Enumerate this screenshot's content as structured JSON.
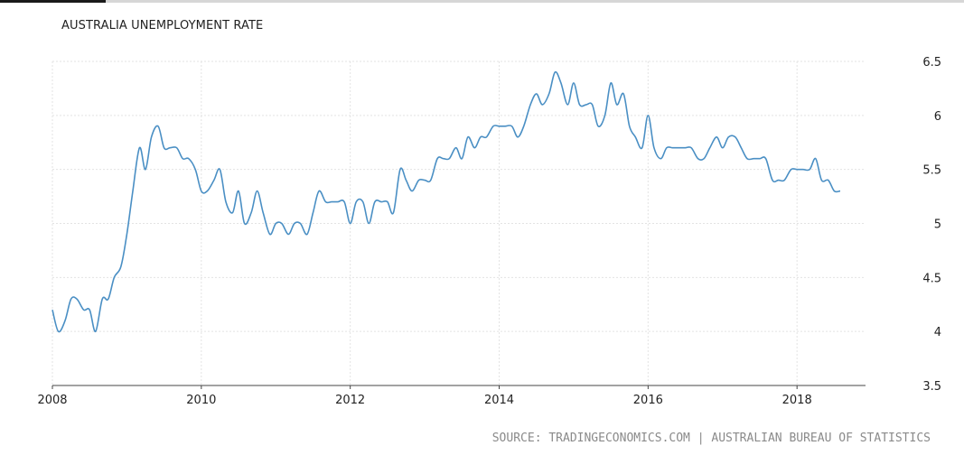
{
  "chart_data": {
    "type": "line",
    "title": "AUSTRALIA UNEMPLOYMENT RATE",
    "xlabel": "",
    "ylabel": "",
    "x_ticks": [
      "2008",
      "2010",
      "2012",
      "2014",
      "2016",
      "2018"
    ],
    "y_ticks": [
      "3.5",
      "4",
      "4.5",
      "5",
      "5.5",
      "6",
      "6.5"
    ],
    "xlim": [
      2008.0,
      2018.92
    ],
    "ylim": [
      3.5,
      6.5
    ],
    "grid": true,
    "line_color": "#4a8fc4",
    "series": [
      {
        "x": [
          2008.0,
          2008.08,
          2008.17,
          2008.25,
          2008.33,
          2008.42,
          2008.5,
          2008.58,
          2008.67,
          2008.75,
          2008.83,
          2008.92,
          2009.0,
          2009.08,
          2009.17,
          2009.25,
          2009.33,
          2009.42,
          2009.5,
          2009.58,
          2009.67,
          2009.75,
          2009.83,
          2009.92,
          2010.0,
          2010.08,
          2010.17,
          2010.25,
          2010.33,
          2010.42,
          2010.5,
          2010.58,
          2010.67,
          2010.75,
          2010.83,
          2010.92,
          2011.0,
          2011.08,
          2011.17,
          2011.25,
          2011.33,
          2011.42,
          2011.5,
          2011.58,
          2011.67,
          2011.75,
          2011.83,
          2011.92,
          2012.0,
          2012.08,
          2012.17,
          2012.25,
          2012.33,
          2012.42,
          2012.5,
          2012.58,
          2012.67,
          2012.75,
          2012.83,
          2012.92,
          2013.0,
          2013.08,
          2013.17,
          2013.25,
          2013.33,
          2013.42,
          2013.5,
          2013.58,
          2013.67,
          2013.75,
          2013.83,
          2013.92,
          2014.0,
          2014.08,
          2014.17,
          2014.25,
          2014.33,
          2014.42,
          2014.5,
          2014.58,
          2014.67,
          2014.75,
          2014.83,
          2014.92,
          2015.0,
          2015.08,
          2015.17,
          2015.25,
          2015.33,
          2015.42,
          2015.5,
          2015.58,
          2015.67,
          2015.75,
          2015.83,
          2015.92,
          2016.0,
          2016.08,
          2016.17,
          2016.25,
          2016.33,
          2016.42,
          2016.5,
          2016.58,
          2016.67,
          2016.75,
          2016.83,
          2016.92,
          2017.0,
          2017.08,
          2017.17,
          2017.25,
          2017.33,
          2017.42,
          2017.5,
          2017.58,
          2017.67,
          2017.75,
          2017.83,
          2017.92,
          2018.0,
          2018.08,
          2018.17,
          2018.25,
          2018.33,
          2018.42,
          2018.5,
          2018.58
        ],
        "y": [
          4.2,
          4.0,
          4.1,
          4.3,
          4.3,
          4.2,
          4.2,
          4.0,
          4.3,
          4.3,
          4.5,
          4.6,
          4.9,
          5.3,
          5.7,
          5.5,
          5.8,
          5.9,
          5.7,
          5.7,
          5.7,
          5.6,
          5.6,
          5.5,
          5.3,
          5.3,
          5.4,
          5.5,
          5.2,
          5.1,
          5.3,
          5.0,
          5.1,
          5.3,
          5.1,
          4.9,
          5.0,
          5.0,
          4.9,
          5.0,
          5.0,
          4.9,
          5.1,
          5.3,
          5.2,
          5.2,
          5.2,
          5.2,
          5.0,
          5.2,
          5.2,
          5.0,
          5.2,
          5.2,
          5.2,
          5.1,
          5.5,
          5.4,
          5.3,
          5.4,
          5.4,
          5.4,
          5.6,
          5.6,
          5.6,
          5.7,
          5.6,
          5.8,
          5.7,
          5.8,
          5.8,
          5.9,
          5.9,
          5.9,
          5.9,
          5.8,
          5.9,
          6.1,
          6.2,
          6.1,
          6.2,
          6.4,
          6.3,
          6.1,
          6.3,
          6.1,
          6.1,
          6.1,
          5.9,
          6.0,
          6.3,
          6.1,
          6.2,
          5.9,
          5.8,
          5.7,
          6.0,
          5.7,
          5.6,
          5.7,
          5.7,
          5.7,
          5.7,
          5.7,
          5.6,
          5.6,
          5.7,
          5.8,
          5.7,
          5.8,
          5.8,
          5.7,
          5.6,
          5.6,
          5.6,
          5.6,
          5.4,
          5.4,
          5.4,
          5.5,
          5.5,
          5.5,
          5.5,
          5.6,
          5.4,
          5.4,
          5.3,
          5.3
        ]
      }
    ]
  },
  "source": "SOURCE: TRADINGECONOMICS.COM | AUSTRALIAN BUREAU OF STATISTICS"
}
